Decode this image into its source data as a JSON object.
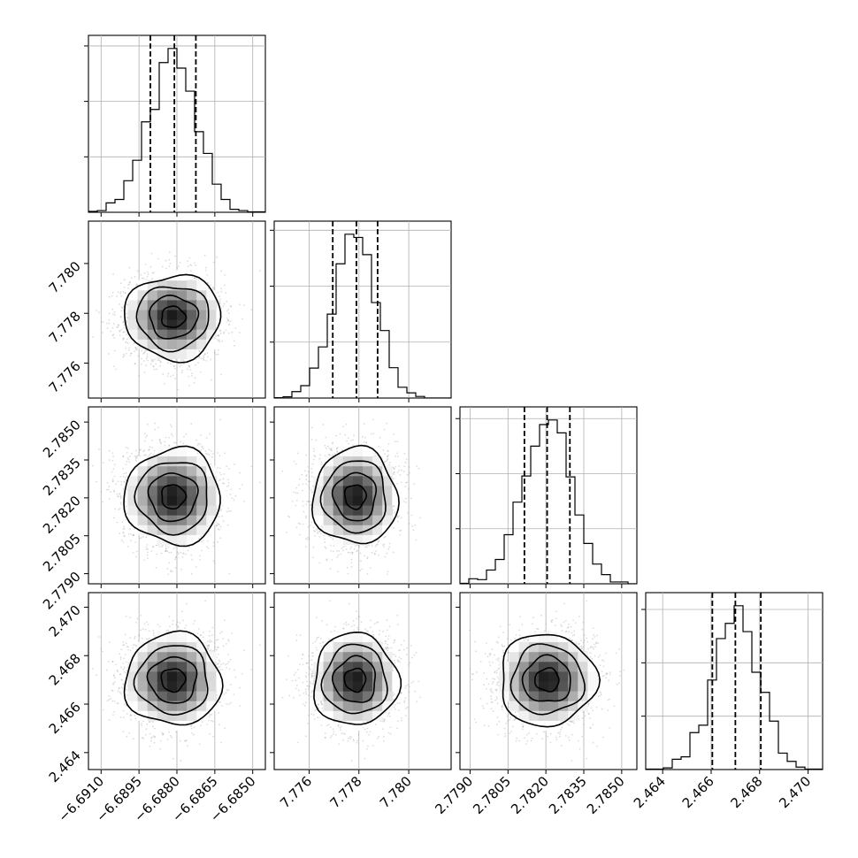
{
  "chart_data": {
    "type": "corner",
    "title": "",
    "params": [
      {
        "key": "p0",
        "label": "",
        "mean": -6.68815,
        "sd": 0.00095,
        "range": [
          -6.6915,
          -6.6845
        ],
        "quantiles": [
          -6.68905,
          -6.6881,
          -6.68725
        ],
        "hist_ticks": [
          -6.691,
          -6.6895,
          -6.688,
          -6.6865,
          -6.685
        ],
        "x_tick_labels": [
          "−6.6910",
          "−6.6895",
          "−6.6880",
          "−6.6865",
          "−6.6850"
        ]
      },
      {
        "key": "p1",
        "label": "",
        "mean": 7.77785,
        "sd": 0.00085,
        "range": [
          7.7746,
          7.7817
        ],
        "quantiles": [
          7.77695,
          7.7779,
          7.77875
        ],
        "hist_ticks": [
          7.776,
          7.778,
          7.78
        ],
        "x_tick_labels": [
          "7.776",
          "7.778",
          "7.780"
        ],
        "y_tick_labels": [
          "7.776",
          "7.778",
          "7.780"
        ]
      },
      {
        "key": "p2",
        "label": "",
        "mean": 2.78205,
        "sd": 0.00095,
        "range": [
          2.7786,
          2.7856
        ],
        "quantiles": [
          2.78115,
          2.78205,
          2.78295
        ],
        "hist_ticks": [
          2.779,
          2.7805,
          2.782,
          2.7835,
          2.785
        ],
        "x_tick_labels": [
          "2.7790",
          "2.7805",
          "2.7820",
          "2.7835",
          "2.7850"
        ],
        "y_tick_labels": [
          "2.7790",
          "2.7805",
          "2.7820",
          "2.7835",
          "2.7850"
        ]
      },
      {
        "key": "p3",
        "label": "",
        "mean": 2.467,
        "sd": 0.00095,
        "range": [
          2.4633,
          2.4706
        ],
        "quantiles": [
          2.46605,
          2.467,
          2.46805
        ],
        "hist_ticks": [
          2.464,
          2.466,
          2.468,
          2.47
        ],
        "x_tick_labels": [
          "2.464",
          "2.466",
          "2.468",
          "2.470"
        ],
        "y_tick_labels": [
          "2.464",
          "2.466",
          "2.468",
          "2.470"
        ]
      }
    ],
    "histogram_bins": 20,
    "quantile_levels": [
      0.16,
      0.5,
      0.84
    ],
    "contour_levels_sigma": [
      0.5,
      1.0,
      1.5,
      2.0
    ],
    "grid": true,
    "colors": {
      "line": "#000000",
      "points": "#9a9a9a",
      "density_dark": "#000000",
      "density_light": "#ffffff",
      "grid": "#b0b0b0"
    }
  }
}
